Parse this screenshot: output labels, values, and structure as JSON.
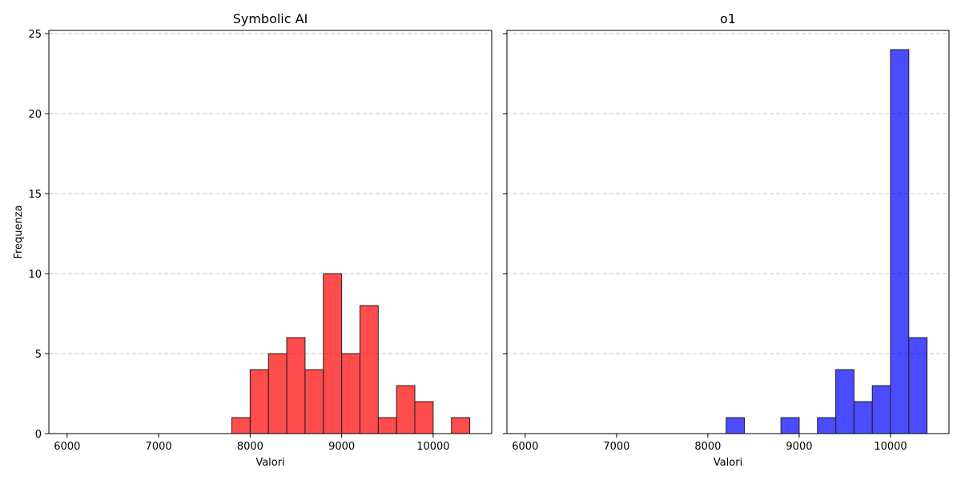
{
  "chart_data": [
    {
      "type": "bar",
      "title": "Symbolic AI",
      "xlabel": "Valori",
      "ylabel": "Frequenza",
      "xlim": [
        5800,
        10640
      ],
      "ylim": [
        0,
        25.2
      ],
      "xticks": [
        6000,
        7000,
        8000,
        9000,
        10000
      ],
      "yticks": [
        0,
        5,
        10,
        15,
        20,
        25
      ],
      "grid": "y-dashed",
      "color": "#ff0000",
      "opacity": 0.7,
      "bin_width": 200,
      "bins": [
        {
          "x0": 6000,
          "count": 0
        },
        {
          "x0": 6200,
          "count": 0
        },
        {
          "x0": 6400,
          "count": 0
        },
        {
          "x0": 6600,
          "count": 0
        },
        {
          "x0": 6800,
          "count": 0
        },
        {
          "x0": 7000,
          "count": 0
        },
        {
          "x0": 7200,
          "count": 0
        },
        {
          "x0": 7400,
          "count": 0
        },
        {
          "x0": 7600,
          "count": 0
        },
        {
          "x0": 7800,
          "count": 1
        },
        {
          "x0": 8000,
          "count": 4
        },
        {
          "x0": 8200,
          "count": 5
        },
        {
          "x0": 8400,
          "count": 6
        },
        {
          "x0": 8600,
          "count": 4
        },
        {
          "x0": 8800,
          "count": 10
        },
        {
          "x0": 9000,
          "count": 5
        },
        {
          "x0": 9200,
          "count": 8
        },
        {
          "x0": 9400,
          "count": 1
        },
        {
          "x0": 9600,
          "count": 3
        },
        {
          "x0": 9800,
          "count": 2
        },
        {
          "x0": 10000,
          "count": 0
        },
        {
          "x0": 10200,
          "count": 1
        }
      ]
    },
    {
      "type": "bar",
      "title": "o1",
      "xlabel": "Valori",
      "ylabel": "",
      "xlim": [
        5800,
        10640
      ],
      "ylim": [
        0,
        25.2
      ],
      "xticks": [
        6000,
        7000,
        8000,
        9000,
        10000
      ],
      "yticks": [
        0,
        5,
        10,
        15,
        20,
        25
      ],
      "grid": "y-dashed",
      "color": "#0000ff",
      "opacity": 0.7,
      "bin_width": 200,
      "bins": [
        {
          "x0": 6000,
          "count": 0
        },
        {
          "x0": 6200,
          "count": 0
        },
        {
          "x0": 6400,
          "count": 0
        },
        {
          "x0": 6600,
          "count": 0
        },
        {
          "x0": 6800,
          "count": 0
        },
        {
          "x0": 7000,
          "count": 0
        },
        {
          "x0": 7200,
          "count": 0
        },
        {
          "x0": 7400,
          "count": 0
        },
        {
          "x0": 7600,
          "count": 0
        },
        {
          "x0": 7800,
          "count": 0
        },
        {
          "x0": 8000,
          "count": 0
        },
        {
          "x0": 8200,
          "count": 1
        },
        {
          "x0": 8400,
          "count": 0
        },
        {
          "x0": 8600,
          "count": 0
        },
        {
          "x0": 8800,
          "count": 1
        },
        {
          "x0": 9000,
          "count": 0
        },
        {
          "x0": 9200,
          "count": 1
        },
        {
          "x0": 9400,
          "count": 4
        },
        {
          "x0": 9600,
          "count": 2
        },
        {
          "x0": 9800,
          "count": 3
        },
        {
          "x0": 10000,
          "count": 24
        },
        {
          "x0": 10200,
          "count": 6
        }
      ]
    }
  ]
}
